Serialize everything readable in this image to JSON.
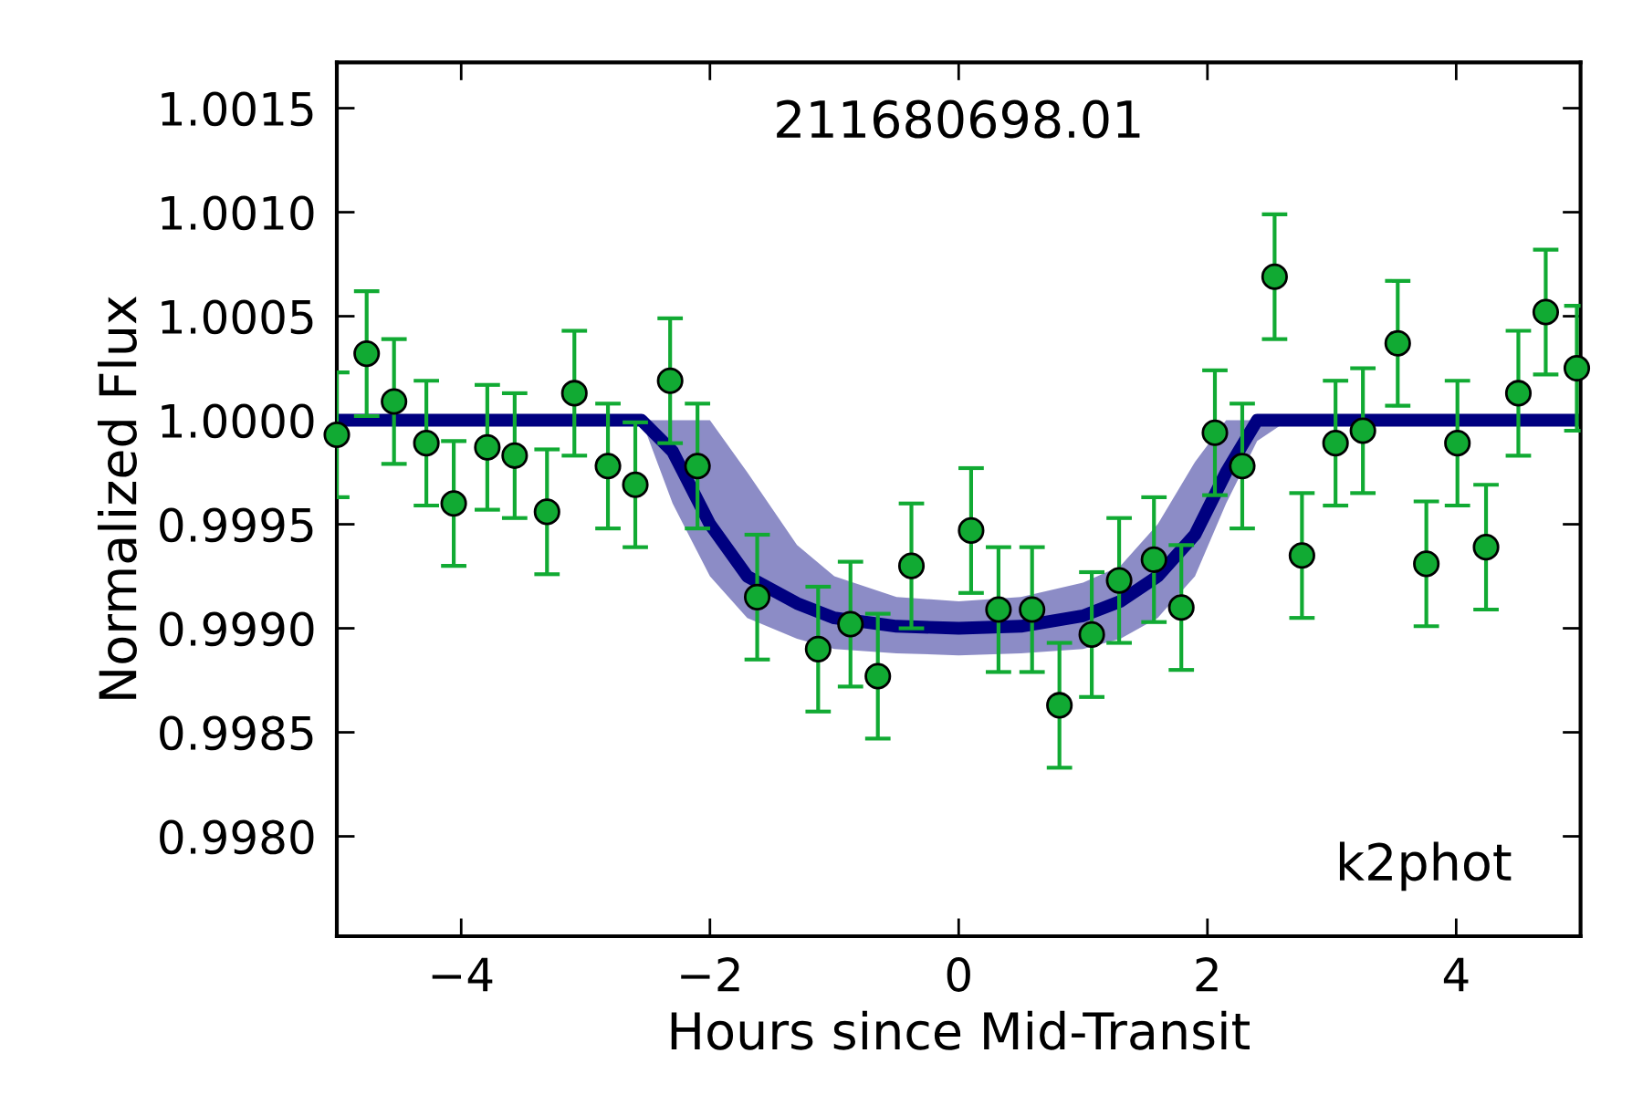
{
  "chart_data": {
    "type": "scatter",
    "title": "211680698.01",
    "xlabel": "Hours since Mid-Transit",
    "ylabel": "Normalized Flux",
    "annotations": [
      "k2phot"
    ],
    "xlim": [
      -5,
      5
    ],
    "ylim": [
      0.99752,
      1.00172
    ],
    "xticks": [
      {
        "value": -4,
        "label": "−4"
      },
      {
        "value": -2,
        "label": "−2"
      },
      0,
      2,
      4
    ],
    "yticks": [
      {
        "value": 0.998,
        "label": "0.9980"
      },
      {
        "value": 0.9985,
        "label": "0.9985"
      },
      {
        "value": 0.999,
        "label": "0.9990"
      },
      {
        "value": 0.9995,
        "label": "0.9995"
      },
      {
        "value": 1.0,
        "label": "1.0000"
      },
      {
        "value": 1.0005,
        "label": "1.0005"
      },
      {
        "value": 1.001,
        "label": "1.0010"
      },
      {
        "value": 1.0015,
        "label": "1.0015"
      }
    ],
    "grid": false,
    "series": [
      {
        "type": "line",
        "color": "#000080",
        "x": [
          -5,
          -2.55,
          -2.3,
          -2.0,
          -1.7,
          -1.3,
          -1.0,
          -0.5,
          0,
          0.5,
          1.0,
          1.3,
          1.6,
          1.9,
          2.15,
          2.4,
          2.65,
          5
        ],
        "values": [
          1.0,
          1.0,
          0.99985,
          0.9995,
          0.99925,
          0.99912,
          0.99905,
          0.99901,
          0.999,
          0.99901,
          0.99906,
          0.99913,
          0.99925,
          0.99945,
          0.99975,
          1.0,
          1.0,
          1.0
        ],
        "lower": [
          1.0,
          1.0,
          0.9996,
          0.99925,
          0.99905,
          0.99895,
          0.9989,
          0.99888,
          0.99887,
          0.99888,
          0.9989,
          0.99895,
          0.99905,
          0.99925,
          0.9996,
          0.9999,
          1.0,
          1.0
        ],
        "upper": [
          1.0,
          1.0,
          1.0,
          1.0,
          0.99975,
          0.9994,
          0.99925,
          0.99915,
          0.99913,
          0.99915,
          0.99922,
          0.9993,
          0.9995,
          0.9998,
          1.0,
          1.0,
          1.0,
          1.0
        ]
      },
      {
        "color": "#11aa33",
        "marker": "circle",
        "x": [
          -5.0,
          -4.76,
          -4.54,
          -4.28,
          -4.06,
          -3.79,
          -3.57,
          -3.31,
          -3.09,
          -2.82,
          -2.6,
          -2.32,
          -2.1,
          -1.62,
          -1.13,
          -0.87,
          -0.65,
          -0.38,
          0.1,
          0.32,
          0.59,
          0.81,
          1.07,
          1.29,
          1.57,
          1.79,
          2.06,
          2.28,
          2.54,
          2.76,
          3.03,
          3.25,
          3.53,
          3.76,
          4.01,
          4.24,
          4.5,
          4.72,
          4.97
        ],
        "values": [
          0.99993,
          1.00032,
          1.00009,
          0.99989,
          0.9996,
          0.99987,
          0.99983,
          0.99956,
          1.00013,
          0.99978,
          0.99969,
          1.00019,
          0.99978,
          0.99915,
          0.9989,
          0.99902,
          0.99877,
          0.9993,
          0.99947,
          0.99909,
          0.99909,
          0.99863,
          0.99897,
          0.99923,
          0.99933,
          0.9991,
          0.99994,
          0.99978,
          1.00069,
          0.99935,
          0.99989,
          0.99995,
          1.00037,
          0.99931,
          0.99989,
          0.99939,
          1.00013,
          1.00052,
          1.00025
        ],
        "errors": [
          0.0003,
          0.0003,
          0.0003,
          0.0003,
          0.0003,
          0.0003,
          0.0003,
          0.0003,
          0.0003,
          0.0003,
          0.0003,
          0.0003,
          0.0003,
          0.0003,
          0.0003,
          0.0003,
          0.0003,
          0.0003,
          0.0003,
          0.0003,
          0.0003,
          0.0003,
          0.0003,
          0.0003,
          0.0003,
          0.0003,
          0.0003,
          0.0003,
          0.0003,
          0.0003,
          0.0003,
          0.0003,
          0.0003,
          0.0003,
          0.0003,
          0.0003,
          0.0003,
          0.0003,
          0.0003
        ]
      }
    ]
  }
}
